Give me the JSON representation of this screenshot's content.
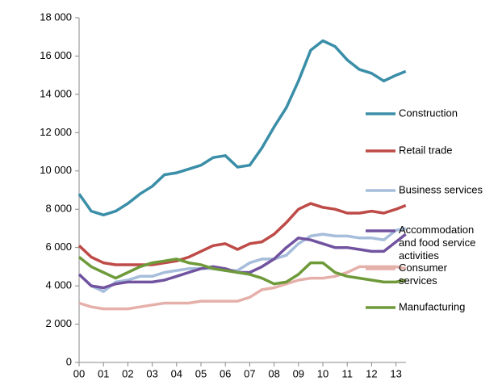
{
  "chart_data": {
    "type": "line",
    "x": [
      0,
      0.5,
      1,
      1.5,
      2,
      2.5,
      3,
      3.5,
      4,
      4.5,
      5,
      5.5,
      6,
      6.5,
      7,
      7.5,
      8,
      8.5,
      9,
      9.5,
      10,
      10.5,
      11,
      11.5,
      12,
      12.5,
      13,
      13.4
    ],
    "xlim": [
      0,
      13.4
    ],
    "xticks": [
      {
        "value": 0,
        "label": "00"
      },
      {
        "value": 1,
        "label": "01"
      },
      {
        "value": 2,
        "label": "02"
      },
      {
        "value": 3,
        "label": "03"
      },
      {
        "value": 4,
        "label": "04"
      },
      {
        "value": 5,
        "label": "05"
      },
      {
        "value": 6,
        "label": "06"
      },
      {
        "value": 7,
        "label": "07"
      },
      {
        "value": 8,
        "label": "08"
      },
      {
        "value": 9,
        "label": "09"
      },
      {
        "value": 10,
        "label": "10"
      },
      {
        "value": 11,
        "label": "11"
      },
      {
        "value": 12,
        "label": "12"
      },
      {
        "value": 13,
        "label": "13"
      }
    ],
    "ylim": [
      0,
      18000
    ],
    "yticks": [
      0,
      {
        "value": 2000,
        "label": "2 000"
      },
      {
        "value": 4000,
        "label": "4 000"
      },
      {
        "value": 6000,
        "label": "6 000"
      },
      {
        "value": 8000,
        "label": "8 000"
      },
      {
        "value": 10000,
        "label": "10 000"
      },
      {
        "value": 12000,
        "label": "12 000"
      },
      {
        "value": 14000,
        "label": "14 000"
      },
      {
        "value": 16000,
        "label": "16 000"
      },
      {
        "value": 18000,
        "label": "18 000"
      }
    ],
    "legend": "right",
    "series": [
      {
        "name": "Construction",
        "color": "#3a8ea8",
        "values": [
          8800,
          7900,
          7700,
          7900,
          8300,
          8800,
          9200,
          9800,
          9900,
          10100,
          10300,
          10700,
          10800,
          10200,
          10300,
          11200,
          12300,
          13300,
          14700,
          16300,
          16800,
          16500,
          15800,
          15300,
          15100,
          14700,
          15000,
          15200
        ]
      },
      {
        "name": "Retail trade",
        "color": "#be4b48",
        "values": [
          6100,
          5500,
          5200,
          5100,
          5100,
          5100,
          5100,
          5200,
          5300,
          5500,
          5800,
          6100,
          6200,
          5900,
          6200,
          6300,
          6700,
          7300,
          8000,
          8300,
          8100,
          8000,
          7800,
          7800,
          7900,
          7800,
          8000,
          8200
        ]
      },
      {
        "name": "Business services",
        "color": "#a6bddb",
        "values": [
          4600,
          4000,
          3700,
          4200,
          4300,
          4500,
          4500,
          4700,
          4800,
          4900,
          4900,
          4900,
          4800,
          4800,
          5200,
          5400,
          5400,
          5600,
          6200,
          6600,
          6700,
          6600,
          6600,
          6500,
          6500,
          6400,
          6900,
          7000
        ]
      },
      {
        "name": "Accommodation and food service activities",
        "color": "#7153a0",
        "values": [
          4600,
          4000,
          3900,
          4100,
          4200,
          4200,
          4200,
          4300,
          4500,
          4700,
          4900,
          5000,
          4900,
          4700,
          4700,
          5000,
          5400,
          6000,
          6500,
          6400,
          6200,
          6000,
          6000,
          5900,
          5800,
          5800,
          6300,
          6700
        ]
      },
      {
        "name": "Consumer services",
        "color": "#e6b0aa",
        "values": [
          3100,
          2900,
          2800,
          2800,
          2800,
          2900,
          3000,
          3100,
          3100,
          3100,
          3200,
          3200,
          3200,
          3200,
          3400,
          3800,
          3900,
          4100,
          4300,
          4400,
          4400,
          4500,
          4700,
          5000,
          5000,
          5000,
          5000,
          4900
        ]
      },
      {
        "name": "Manufacturing",
        "color": "#6f9a3a",
        "values": [
          5500,
          5000,
          4700,
          4400,
          4700,
          5000,
          5200,
          5300,
          5400,
          5200,
          5100,
          4900,
          4800,
          4700,
          4600,
          4400,
          4100,
          4200,
          4600,
          5200,
          5200,
          4700,
          4500,
          4400,
          4300,
          4200,
          4200,
          4300
        ]
      }
    ]
  }
}
